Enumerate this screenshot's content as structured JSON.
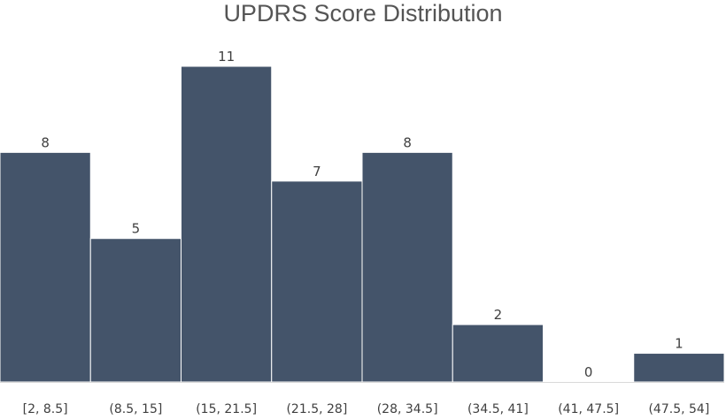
{
  "chart_data": {
    "type": "bar",
    "title": "UPDRS Score Distribution",
    "xlabel": "",
    "ylabel": "",
    "categories": [
      "[2, 8.5]",
      "(8.5, 15]",
      "(15, 21.5]",
      "(21.5, 28]",
      "(28, 34.5]",
      "(34.5, 41]",
      "(41, 47.5]",
      "(47.5, 54]"
    ],
    "values": [
      8,
      5,
      11,
      7,
      8,
      2,
      0,
      1
    ],
    "ylim": [
      0,
      11
    ],
    "grid": false,
    "legend": "none",
    "bar_color": "#44546a",
    "baseline_color": "#d9d9d9"
  }
}
